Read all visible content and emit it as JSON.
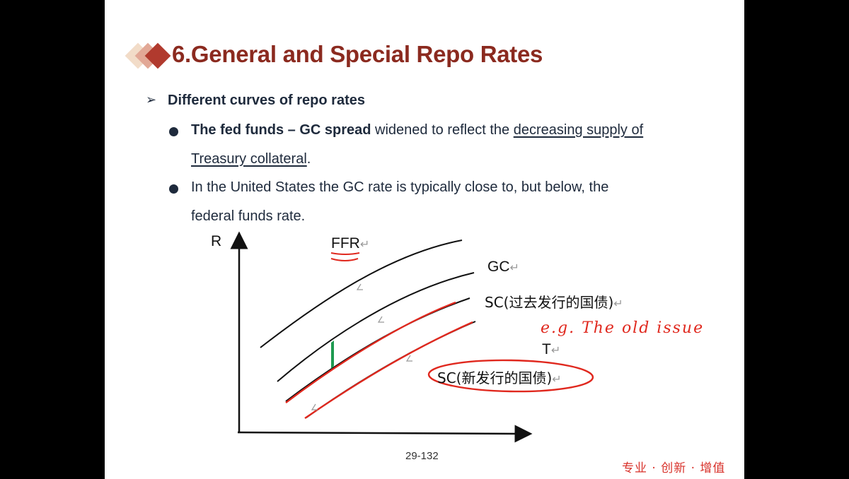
{
  "slide": {
    "title": "6.General and Special Repo Rates",
    "heading": "Different curves of repo rates",
    "bullet1": {
      "bold_part": "The fed funds – GC spread",
      "mid_part": " widened to reflect the ",
      "underlined_part": "decreasing supply of",
      "line2_underlined": "Treasury collateral",
      "line2_end": "."
    },
    "bullet2": {
      "line1": "In the United States the GC rate is typically close to, but below, the",
      "line2": "federal funds rate."
    },
    "page_number": "29-132",
    "footer_brand": "专业 · 创新 · 增值"
  },
  "diagram": {
    "axis_y_label": "R",
    "labels": {
      "ffr": "FFR",
      "gc": "GC",
      "sc_old": "SC(过去发行的国债)",
      "t": "T",
      "sc_new": "SC(新发行的国债)"
    },
    "annotation": "e.g. The old issue",
    "colors": {
      "curve": "#111111",
      "highlight": "#e0281e",
      "spread_marker": "#1e9a50",
      "title": "#8b2a1f"
    }
  }
}
